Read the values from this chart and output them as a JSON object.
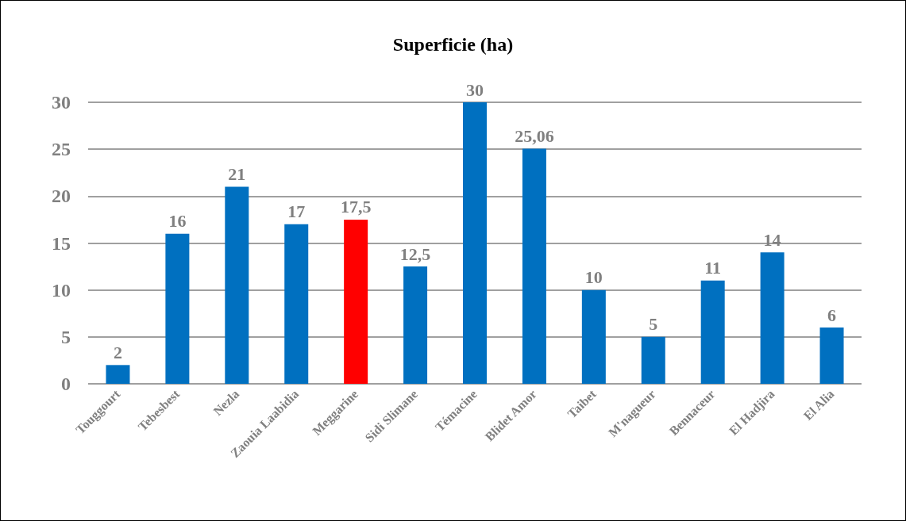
{
  "chart_data": {
    "type": "bar",
    "title": "Superficie (ha)",
    "categories": [
      "Touggourt",
      "Tebesbest",
      "Nezla",
      "Zaouia Laabidia",
      "Meggarine",
      "Sidi Slimane",
      "Témacine",
      "Blidet Amor",
      "Taibet",
      "M'nagueur",
      "Bennaceur",
      "El Hadjira",
      "El Alia"
    ],
    "values": [
      2,
      16,
      21,
      17,
      17.5,
      12.5,
      30,
      25.06,
      10,
      5,
      11,
      14,
      6
    ],
    "value_labels": [
      "2",
      "16",
      "21",
      "17",
      "17,5",
      "12,5",
      "30",
      "25,06",
      "10",
      "5",
      "11",
      "14",
      "6"
    ],
    "colors": [
      "#0070c0",
      "#0070c0",
      "#0070c0",
      "#0070c0",
      "#ff0000",
      "#0070c0",
      "#0070c0",
      "#0070c0",
      "#0070c0",
      "#0070c0",
      "#0070c0",
      "#0070c0",
      "#0070c0"
    ],
    "ylim": [
      0,
      30
    ],
    "yticks": [
      0,
      5,
      10,
      15,
      20,
      25,
      30
    ],
    "grid": "y"
  }
}
